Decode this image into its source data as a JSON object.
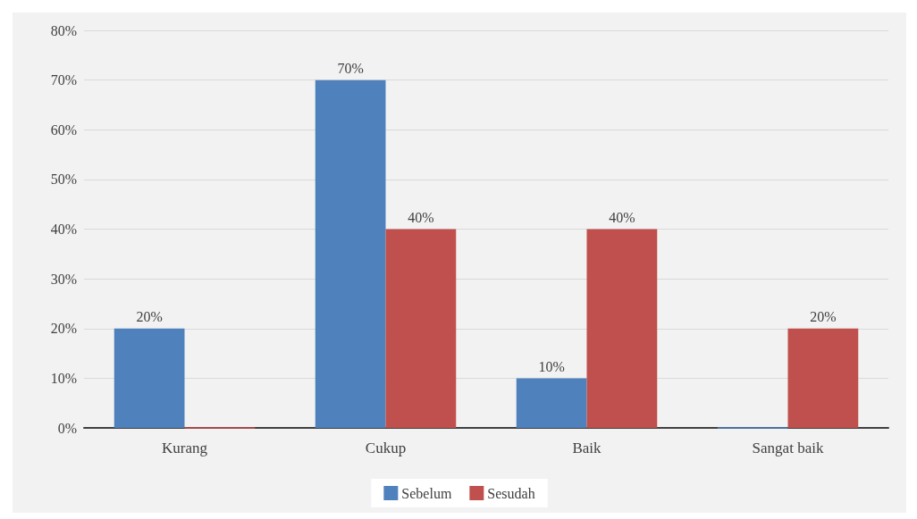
{
  "chart_data": {
    "type": "bar",
    "categories": [
      "Kurang",
      "Cukup",
      "Baik",
      "Sangat baik"
    ],
    "series": [
      {
        "name": "Sebelum",
        "color": "#4f81bd",
        "values": [
          20,
          70,
          10,
          0
        ],
        "value_labels": [
          "20%",
          "70%",
          "10%",
          null
        ]
      },
      {
        "name": "Sesudah",
        "color": "#c0504d",
        "values": [
          0,
          40,
          40,
          20
        ],
        "value_labels": [
          null,
          "40%",
          "40%",
          "20%"
        ]
      }
    ],
    "ylim": [
      0,
      80
    ],
    "yticks": [
      {
        "value": 0,
        "label": "0%"
      },
      {
        "value": 10,
        "label": "10%"
      },
      {
        "value": 20,
        "label": "20%"
      },
      {
        "value": 30,
        "label": "30%"
      },
      {
        "value": 40,
        "label": "40%"
      },
      {
        "value": 50,
        "label": "50%"
      },
      {
        "value": 60,
        "label": "60%"
      },
      {
        "value": 70,
        "label": "70%"
      },
      {
        "value": 80,
        "label": "80%"
      }
    ],
    "grid": "y",
    "legend": "bottom"
  }
}
